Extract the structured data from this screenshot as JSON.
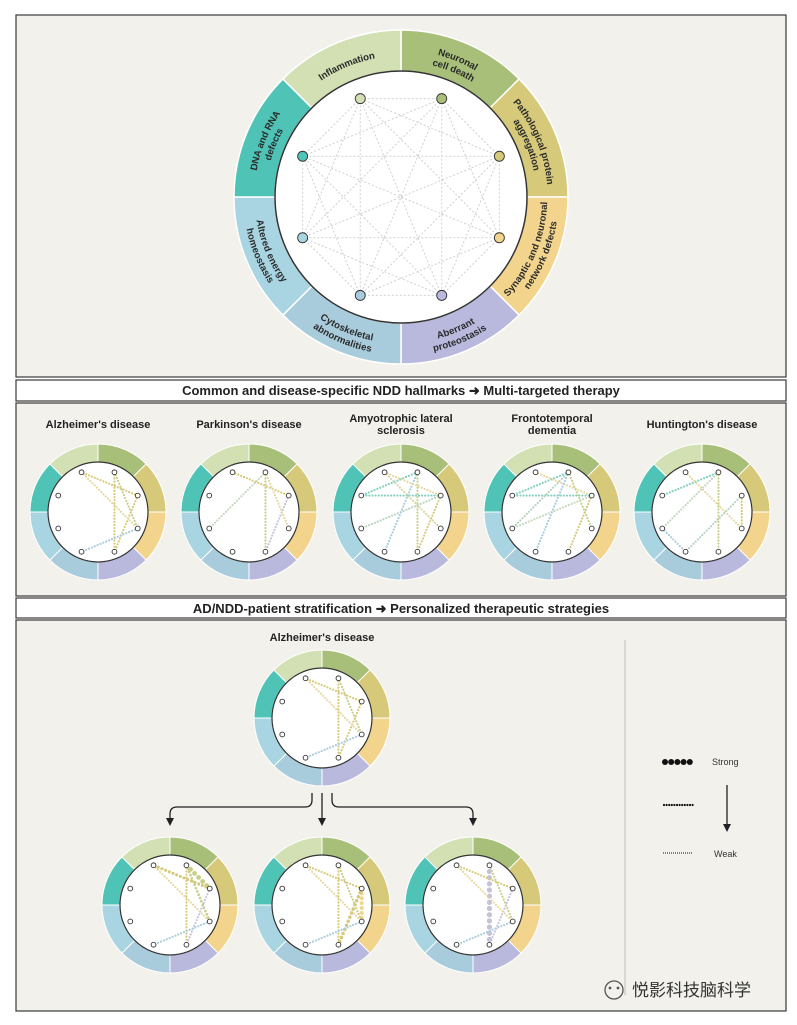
{
  "colors": {
    "panel_bg": "#f2f1ec",
    "border": "#3a3a3a",
    "connector_grid": "#cfcfcf",
    "hallmarks": [
      "#a8bf79",
      "#d6c97a",
      "#f2d48c",
      "#b9b9de",
      "#a9ccdc",
      "#a8d5e1",
      "#4fc4b6",
      "#d2e0b4"
    ]
  },
  "hallmarks": [
    {
      "id": "neuronal",
      "label_lines": [
        "Neuronal",
        "cell death"
      ]
    },
    {
      "id": "aggregation",
      "label_lines": [
        "Pathological protein",
        "aggregation"
      ]
    },
    {
      "id": "synaptic",
      "label_lines": [
        "Synaptic and neuronal",
        "network defects"
      ]
    },
    {
      "id": "proteostasis",
      "label_lines": [
        "Aberrant",
        "proteostasis"
      ]
    },
    {
      "id": "cytoskeletal",
      "label_lines": [
        "Cytoskeletal",
        "abnormalities"
      ]
    },
    {
      "id": "energy",
      "label_lines": [
        "Altered energy",
        "homeostasis"
      ]
    },
    {
      "id": "dna_rna",
      "label_lines": [
        "DNA and RNA",
        "defects"
      ]
    },
    {
      "id": "inflammation",
      "label_lines": [
        "Inflammation"
      ]
    }
  ],
  "banner_multi": "Common and disease-specific NDD hallmarks ➜ Multi-targeted therapy",
  "banner_personalized": "AD/NDD-patient stratification ➜ Personalized therapeutic strategies",
  "diseases": [
    {
      "name_lines": [
        "Alzheimer's disease"
      ],
      "connections": [
        [
          0,
          3,
          "#d6c97a"
        ],
        [
          1,
          7,
          "#d6c97a"
        ],
        [
          1,
          3,
          "#d6c97a"
        ],
        [
          0,
          2,
          "#c8cf8a"
        ],
        [
          7,
          2,
          "#e6d8a0"
        ],
        [
          2,
          4,
          "#a9ccdc"
        ]
      ]
    },
    {
      "name_lines": [
        "Parkinson's disease"
      ],
      "connections": [
        [
          0,
          5,
          "#c6d8c0"
        ],
        [
          1,
          3,
          "#c9c3d8"
        ],
        [
          7,
          1,
          "#d6c97a"
        ],
        [
          0,
          3,
          "#c8cf8a"
        ],
        [
          0,
          2,
          "#e6d8a0"
        ]
      ]
    },
    {
      "name_lines": [
        "Amyotrophic lateral",
        "sclerosis"
      ],
      "connections": [
        [
          0,
          6,
          "#7fd0bf"
        ],
        [
          1,
          6,
          "#7fd0bf"
        ],
        [
          7,
          2,
          "#d9d6a0"
        ],
        [
          1,
          5,
          "#b6d4c0"
        ],
        [
          0,
          4,
          "#a9ccdc"
        ],
        [
          0,
          3,
          "#c8cf8a"
        ],
        [
          1,
          3,
          "#d6c97a"
        ],
        [
          7,
          1,
          "#e6d8a0"
        ]
      ]
    },
    {
      "name_lines": [
        "Frontotemporal",
        "dementia"
      ],
      "connections": [
        [
          0,
          6,
          "#7fd0bf"
        ],
        [
          1,
          6,
          "#7fd0bf"
        ],
        [
          7,
          1,
          "#e6d8a0"
        ],
        [
          0,
          5,
          "#b6d4c0"
        ],
        [
          1,
          5,
          "#c6d8c0"
        ],
        [
          0,
          4,
          "#a9ccdc"
        ],
        [
          1,
          3,
          "#d6c97a"
        ],
        [
          0,
          2,
          "#c8cf8a"
        ]
      ]
    },
    {
      "name_lines": [
        "Huntington's disease"
      ],
      "connections": [
        [
          0,
          6,
          "#7fd0bf"
        ],
        [
          5,
          4,
          "#a9ccdc"
        ],
        [
          7,
          2,
          "#e6d8a0"
        ],
        [
          0,
          5,
          "#c6d8c0"
        ],
        [
          1,
          4,
          "#b6d4c0"
        ],
        [
          0,
          3,
          "#c8cf8a"
        ],
        [
          1,
          2,
          "#d6c97a"
        ]
      ]
    }
  ],
  "stratification": {
    "parent": {
      "name": "Alzheimer's disease",
      "connections": [
        [
          0,
          3,
          "#d6c97a"
        ],
        [
          1,
          7,
          "#d6c97a"
        ],
        [
          1,
          3,
          "#d6c97a"
        ],
        [
          0,
          2,
          "#c8cf8a"
        ],
        [
          7,
          2,
          "#e6d8a0"
        ],
        [
          2,
          4,
          "#a9ccdc"
        ]
      ]
    },
    "patients": [
      {
        "connections": [
          [
            0,
            1,
            "#c8cf8a",
            2.2
          ],
          [
            0,
            3,
            "#d6c97a",
            1
          ],
          [
            1,
            7,
            "#d6c97a",
            1.4
          ],
          [
            1,
            3,
            "#c9c3d8",
            1
          ],
          [
            0,
            2,
            "#c8cf8a",
            1.2
          ],
          [
            7,
            2,
            "#e6d8a0",
            1
          ],
          [
            2,
            4,
            "#a9ccdc",
            1
          ]
        ]
      },
      {
        "connections": [
          [
            0,
            3,
            "#d6c97a",
            1
          ],
          [
            1,
            7,
            "#d6c97a",
            1
          ],
          [
            1,
            2,
            "#f2d48c",
            1.8
          ],
          [
            1,
            3,
            "#d6c97a",
            1.6
          ],
          [
            0,
            2,
            "#c8cf8a",
            1
          ],
          [
            7,
            2,
            "#e6d8a0",
            1
          ],
          [
            2,
            4,
            "#a9ccdc",
            1
          ]
        ]
      },
      {
        "connections": [
          [
            0,
            3,
            "#c6c3d8",
            2.4
          ],
          [
            1,
            7,
            "#d6c97a",
            1
          ],
          [
            1,
            3,
            "#c9c3d8",
            1
          ],
          [
            0,
            2,
            "#c8cf8a",
            1
          ],
          [
            7,
            2,
            "#e6d8a0",
            1
          ],
          [
            2,
            4,
            "#a9ccdc",
            1
          ]
        ]
      }
    ]
  },
  "legend": {
    "strong_label": "Strong",
    "weak_label": "Weak"
  },
  "watermark": "悦影科技脑科学"
}
